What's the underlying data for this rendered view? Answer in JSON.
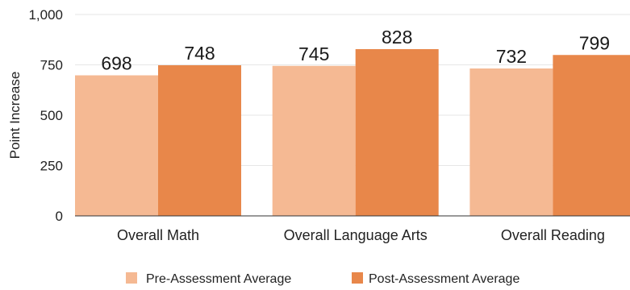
{
  "chart_data": {
    "type": "bar",
    "title": "",
    "xlabel": "",
    "ylabel": "Point Increase",
    "categories": [
      "Overall Math",
      "Overall Language Arts",
      "Overall Reading"
    ],
    "series": [
      {
        "name": "Pre-Assessment Average",
        "values": [
          698,
          745,
          732
        ],
        "color": "#f5b993"
      },
      {
        "name": "Post-Assessment Average",
        "values": [
          748,
          828,
          799
        ],
        "color": "#e8874a"
      }
    ],
    "data_labels": [
      [
        "698",
        "748"
      ],
      [
        "745",
        "828"
      ],
      [
        "732",
        "799"
      ]
    ],
    "ylim": [
      0,
      1000
    ],
    "yticks": [
      0,
      250,
      500,
      750,
      1000
    ],
    "ytick_labels": [
      "0",
      "250",
      "500",
      "750",
      "1,000"
    ],
    "grid": true,
    "legend_position": "bottom"
  }
}
